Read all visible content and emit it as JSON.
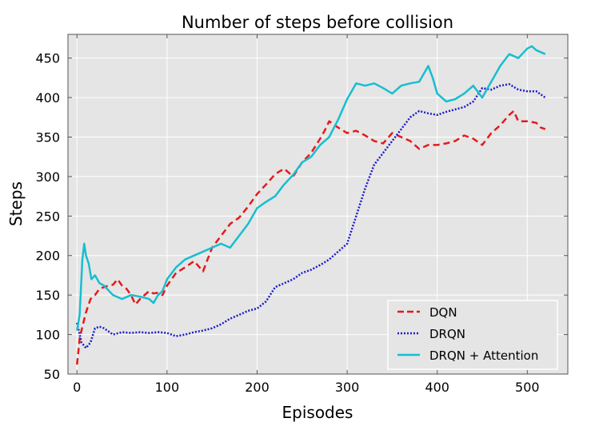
{
  "chart_data": {
    "type": "line",
    "title": "Number of steps before collision",
    "xlabel": "Episodes",
    "ylabel": "Steps",
    "xlim": [
      -10,
      545
    ],
    "ylim": [
      50,
      480
    ],
    "xticks": [
      0,
      100,
      200,
      300,
      400,
      500
    ],
    "yticks": [
      50,
      100,
      150,
      200,
      250,
      300,
      350,
      400,
      450
    ],
    "grid": true,
    "legend_position": "bottom-right",
    "series": [
      {
        "name": "DQN",
        "color": "#e41a1c",
        "style": "dashed",
        "x": [
          0,
          3,
          6,
          10,
          15,
          20,
          25,
          30,
          35,
          40,
          45,
          50,
          55,
          60,
          65,
          70,
          75,
          80,
          85,
          90,
          95,
          100,
          110,
          120,
          130,
          140,
          145,
          150,
          160,
          170,
          180,
          190,
          200,
          210,
          220,
          230,
          240,
          250,
          260,
          270,
          275,
          280,
          290,
          300,
          310,
          320,
          330,
          340,
          350,
          360,
          370,
          380,
          390,
          400,
          410,
          420,
          430,
          440,
          450,
          460,
          470,
          480,
          485,
          490,
          500,
          510,
          515,
          520
        ],
        "y": [
          62,
          95,
          110,
          128,
          145,
          150,
          158,
          160,
          162,
          163,
          170,
          162,
          158,
          150,
          138,
          145,
          150,
          155,
          152,
          153,
          150,
          162,
          178,
          185,
          193,
          180,
          195,
          210,
          225,
          240,
          248,
          262,
          278,
          290,
          303,
          310,
          300,
          318,
          330,
          348,
          358,
          370,
          362,
          355,
          358,
          352,
          345,
          342,
          355,
          350,
          345,
          335,
          340,
          340,
          342,
          345,
          352,
          348,
          340,
          355,
          365,
          378,
          383,
          370,
          370,
          368,
          362,
          360
        ]
      },
      {
        "name": "DRQN",
        "color": "#1a1acc",
        "style": "dotted",
        "x": [
          0,
          5,
          10,
          15,
          20,
          25,
          30,
          40,
          50,
          60,
          70,
          80,
          90,
          100,
          110,
          120,
          130,
          140,
          150,
          160,
          170,
          180,
          190,
          200,
          210,
          220,
          230,
          240,
          250,
          260,
          270,
          280,
          290,
          300,
          310,
          320,
          330,
          340,
          350,
          360,
          370,
          380,
          390,
          400,
          410,
          420,
          430,
          440,
          450,
          460,
          470,
          480,
          490,
          500,
          510,
          520
        ],
        "y": [
          115,
          90,
          83,
          90,
          108,
          110,
          108,
          100,
          103,
          102,
          103,
          102,
          103,
          102,
          98,
          100,
          103,
          105,
          108,
          113,
          120,
          125,
          130,
          133,
          142,
          160,
          165,
          170,
          178,
          182,
          188,
          195,
          205,
          215,
          250,
          285,
          315,
          330,
          345,
          360,
          375,
          383,
          380,
          378,
          382,
          385,
          388,
          395,
          412,
          410,
          415,
          417,
          410,
          408,
          408,
          400
        ]
      },
      {
        "name": "DRQN + Attention",
        "color": "#17becf",
        "style": "solid",
        "x": [
          0,
          3,
          6,
          8,
          10,
          13,
          16,
          20,
          25,
          30,
          40,
          50,
          60,
          70,
          80,
          85,
          90,
          95,
          100,
          110,
          120,
          130,
          140,
          150,
          160,
          170,
          180,
          190,
          200,
          210,
          220,
          230,
          240,
          250,
          260,
          270,
          280,
          290,
          300,
          310,
          320,
          330,
          340,
          350,
          360,
          370,
          380,
          390,
          395,
          400,
          410,
          420,
          430,
          440,
          450,
          460,
          470,
          480,
          490,
          500,
          505,
          510,
          520
        ],
        "y": [
          105,
          125,
          195,
          215,
          200,
          190,
          170,
          175,
          165,
          162,
          150,
          145,
          150,
          148,
          145,
          140,
          150,
          155,
          170,
          185,
          195,
          200,
          205,
          210,
          215,
          210,
          225,
          240,
          260,
          268,
          275,
          290,
          302,
          318,
          325,
          340,
          350,
          372,
          398,
          418,
          415,
          418,
          412,
          405,
          415,
          418,
          420,
          440,
          425,
          405,
          395,
          398,
          405,
          415,
          400,
          420,
          440,
          455,
          450,
          462,
          465,
          460,
          455
        ]
      }
    ]
  }
}
